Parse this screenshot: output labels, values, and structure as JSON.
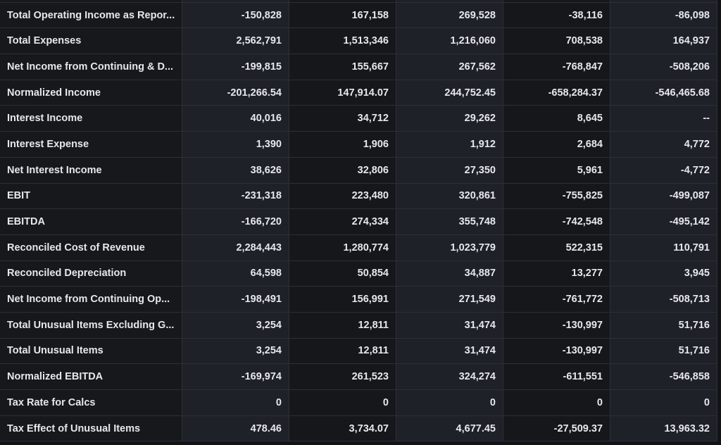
{
  "rows": [
    {
      "label": "",
      "values": [
        "",
        "",
        "",
        "",
        ""
      ]
    },
    {
      "label": "Total Operating Income as Repor...",
      "values": [
        "-150,828",
        "167,158",
        "269,528",
        "-38,116",
        "-86,098"
      ]
    },
    {
      "label": "Total Expenses",
      "values": [
        "2,562,791",
        "1,513,346",
        "1,216,060",
        "708,538",
        "164,937"
      ]
    },
    {
      "label": "Net Income from Continuing & D...",
      "values": [
        "-199,815",
        "155,667",
        "267,562",
        "-768,847",
        "-508,206"
      ]
    },
    {
      "label": "Normalized Income",
      "values": [
        "-201,266.54",
        "147,914.07",
        "244,752.45",
        "-658,284.37",
        "-546,465.68"
      ]
    },
    {
      "label": "Interest Income",
      "values": [
        "40,016",
        "34,712",
        "29,262",
        "8,645",
        "--"
      ]
    },
    {
      "label": "Interest Expense",
      "values": [
        "1,390",
        "1,906",
        "1,912",
        "2,684",
        "4,772"
      ]
    },
    {
      "label": "Net Interest Income",
      "values": [
        "38,626",
        "32,806",
        "27,350",
        "5,961",
        "-4,772"
      ]
    },
    {
      "label": "EBIT",
      "values": [
        "-231,318",
        "223,480",
        "320,861",
        "-755,825",
        "-499,087"
      ]
    },
    {
      "label": "EBITDA",
      "values": [
        "-166,720",
        "274,334",
        "355,748",
        "-742,548",
        "-495,142"
      ]
    },
    {
      "label": "Reconciled Cost of Revenue",
      "values": [
        "2,284,443",
        "1,280,774",
        "1,023,779",
        "522,315",
        "110,791"
      ]
    },
    {
      "label": "Reconciled Depreciation",
      "values": [
        "64,598",
        "50,854",
        "34,887",
        "13,277",
        "3,945"
      ]
    },
    {
      "label": "Net Income from Continuing Op...",
      "values": [
        "-198,491",
        "156,991",
        "271,549",
        "-761,772",
        "-508,713"
      ]
    },
    {
      "label": "Total Unusual Items Excluding G...",
      "values": [
        "3,254",
        "12,811",
        "31,474",
        "-130,997",
        "51,716"
      ]
    },
    {
      "label": "Total Unusual Items",
      "values": [
        "3,254",
        "12,811",
        "31,474",
        "-130,997",
        "51,716"
      ]
    },
    {
      "label": "Normalized EBITDA",
      "values": [
        "-169,974",
        "261,523",
        "324,274",
        "-611,551",
        "-546,858"
      ]
    },
    {
      "label": "Tax Rate for Calcs",
      "values": [
        "0",
        "0",
        "0",
        "0",
        "0"
      ]
    },
    {
      "label": "Tax Effect of Unusual Items",
      "values": [
        "478.46",
        "3,734.07",
        "4,677.45",
        "-27,509.37",
        "13,963.32"
      ]
    }
  ]
}
